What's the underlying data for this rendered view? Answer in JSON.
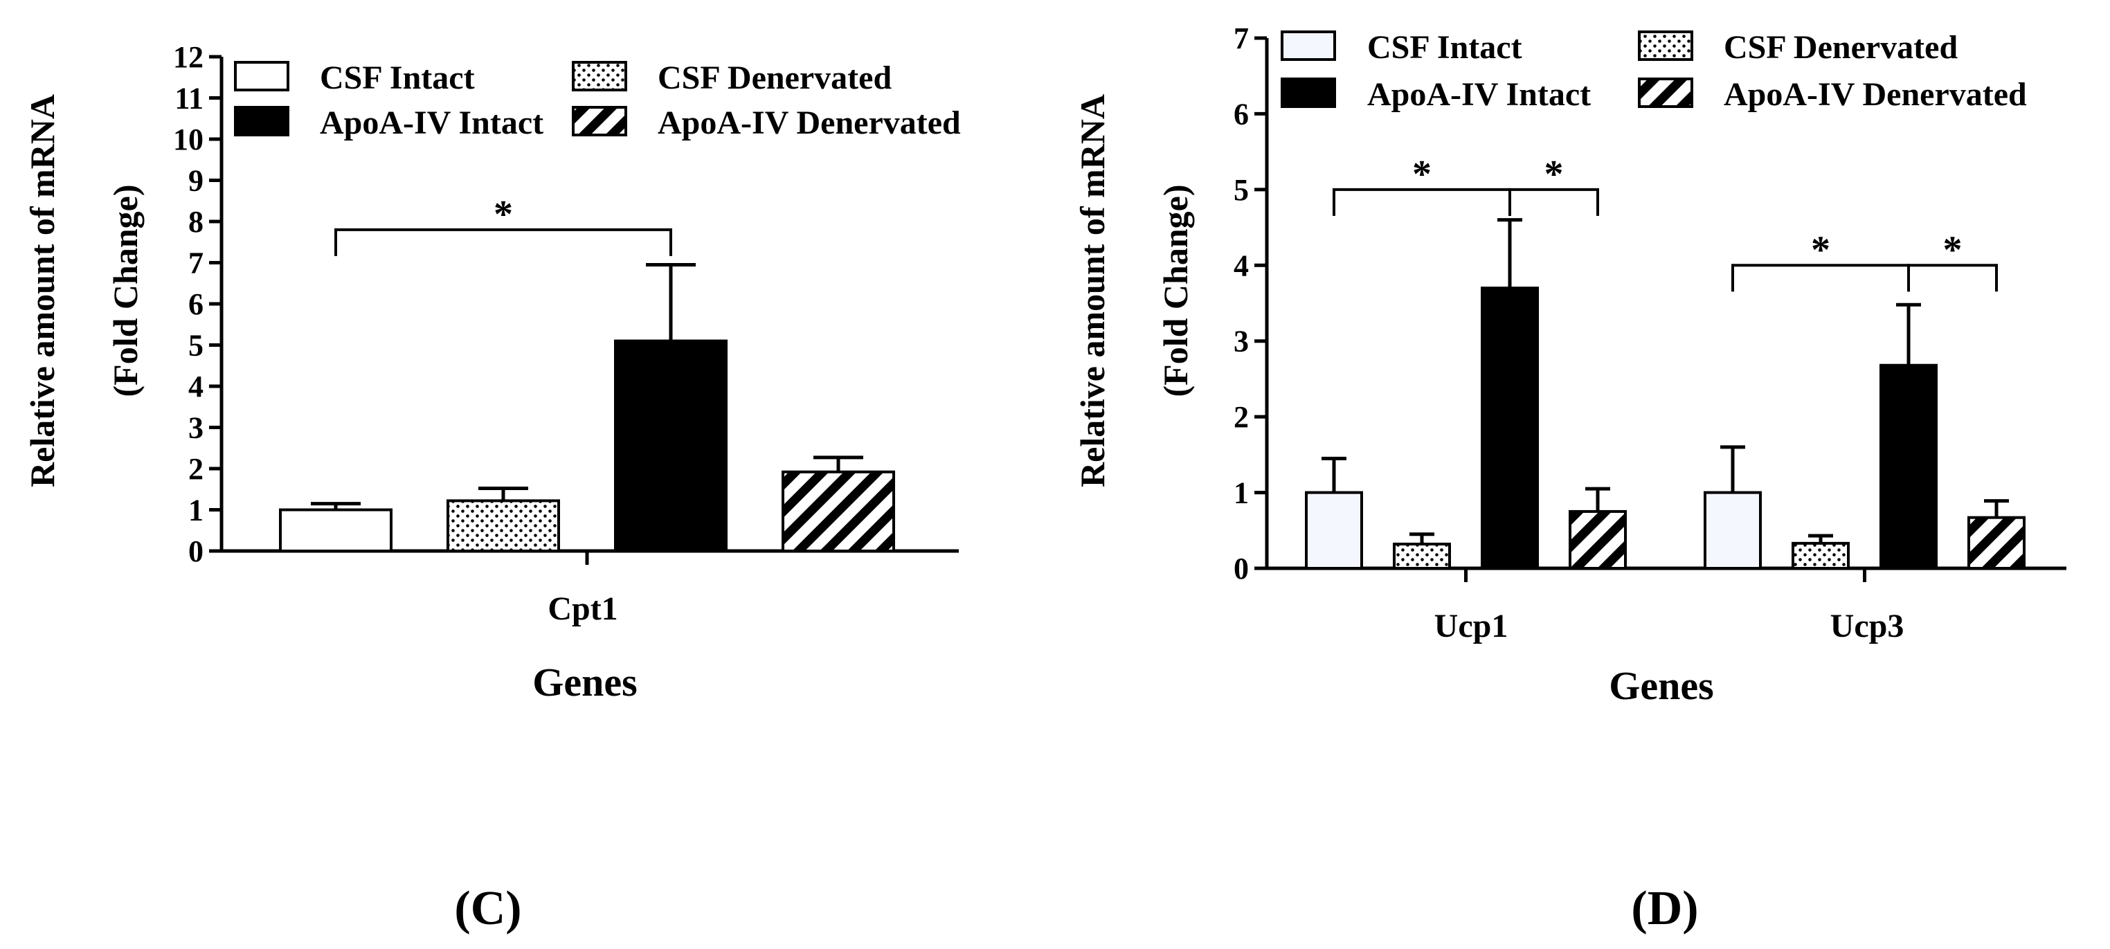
{
  "colors": {
    "csf_intact": "#f5f7ff",
    "csf_denervated": "#ffffff",
    "apoa_intact": "#000000",
    "apoa_denervated": "#ffffff",
    "ink": "#000000"
  },
  "legend_labels": [
    "CSF Intact",
    "CSF Denervated",
    "ApoA-IV Intact",
    "ApoA-IV Denervated"
  ],
  "chart_data": [
    {
      "panel": "C",
      "panel_label": "(C)",
      "type": "bar",
      "categories": [
        "Cpt1"
      ],
      "xlabel": "Genes",
      "ylabel_line1": "Relative  amount of mRNA",
      "ylabel_line2": "(Fold Change)",
      "ylim": [
        0,
        12
      ],
      "yticks": [
        "0",
        "1",
        "2",
        "3",
        "4",
        "5",
        "6",
        "7",
        "8",
        "9",
        "10",
        "11",
        "12"
      ],
      "series": [
        {
          "name": "CSF Intact",
          "values": [
            1.0
          ],
          "errors": [
            0.15
          ]
        },
        {
          "name": "CSF Denervated",
          "values": [
            1.22
          ],
          "errors": [
            0.3
          ]
        },
        {
          "name": "ApoA-IV Intact",
          "values": [
            5.1
          ],
          "errors": [
            1.85
          ]
        },
        {
          "name": "ApoA-IV Denervated",
          "values": [
            1.92
          ],
          "errors": [
            0.35
          ]
        }
      ],
      "annotations": [
        {
          "category": 0,
          "from_series": 0,
          "to_series": 2,
          "level": 7.8,
          "label": "*"
        }
      ]
    },
    {
      "panel": "D",
      "panel_label": "(D)",
      "type": "bar",
      "categories": [
        "Ucp1",
        "Ucp3"
      ],
      "xlabel": "Genes",
      "ylabel_line1": "Relative  amount of mRNA",
      "ylabel_line2": "(Fold Change)",
      "ylim": [
        0,
        7
      ],
      "yticks": [
        "0",
        "1",
        "2",
        "3",
        "4",
        "5",
        "6",
        "7"
      ],
      "series": [
        {
          "name": "CSF Intact",
          "values": [
            1.0,
            1.0
          ],
          "errors": [
            0.45,
            0.6
          ]
        },
        {
          "name": "CSF Denervated",
          "values": [
            0.32,
            0.33
          ],
          "errors": [
            0.13,
            0.1
          ]
        },
        {
          "name": "ApoA-IV Intact",
          "values": [
            3.7,
            2.68
          ],
          "errors": [
            0.9,
            0.8
          ]
        },
        {
          "name": "ApoA-IV Denervated",
          "values": [
            0.75,
            0.67
          ],
          "errors": [
            0.3,
            0.22
          ]
        }
      ],
      "annotations": [
        {
          "category": 0,
          "from_series": 0,
          "to_series": 2,
          "level": 5.0,
          "label": "*"
        },
        {
          "category": 0,
          "from_series": 2,
          "to_series": 3,
          "level": 5.0,
          "label": "*"
        },
        {
          "category": 1,
          "from_series": 0,
          "to_series": 2,
          "level": 4.0,
          "label": "*"
        },
        {
          "category": 1,
          "from_series": 2,
          "to_series": 3,
          "level": 4.0,
          "label": "*"
        }
      ]
    }
  ]
}
